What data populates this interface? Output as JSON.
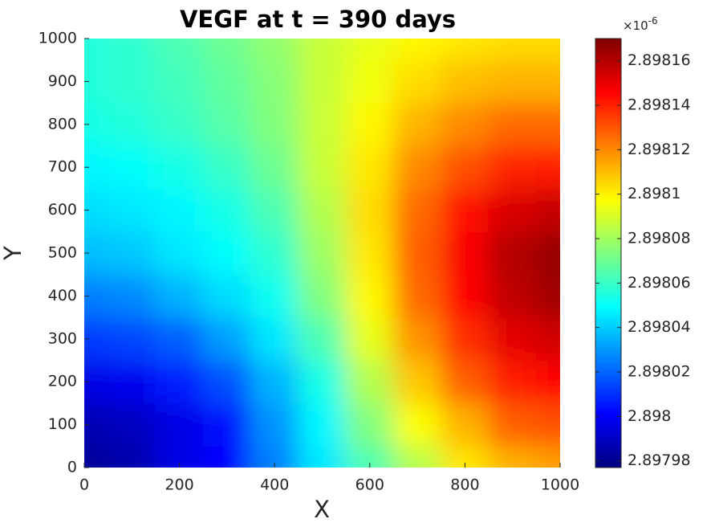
{
  "chart_data": {
    "type": "contourf",
    "title": "VEGF at t = 390 days",
    "xlabel": "X",
    "ylabel": "Y",
    "x": [
      0,
      100,
      200,
      300,
      400,
      500,
      600,
      700,
      800,
      900,
      1000
    ],
    "y": [
      0,
      100,
      200,
      300,
      400,
      500,
      600,
      700,
      800,
      900,
      1000
    ],
    "z": [
      [
        2.897981,
        2.897985,
        2.897996,
        2.898002,
        2.898025,
        2.898045,
        2.898064,
        2.898083,
        2.898102,
        2.898112,
        2.898116
      ],
      [
        2.897987,
        2.897989,
        2.897996,
        2.898004,
        2.898029,
        2.898048,
        2.898074,
        2.898097,
        2.898112,
        2.898128,
        2.898131
      ],
      [
        2.897996,
        2.897998,
        2.898006,
        2.898016,
        2.898035,
        2.898054,
        2.898083,
        2.898108,
        2.898128,
        2.898141,
        2.898145
      ],
      [
        2.898012,
        2.898014,
        2.898019,
        2.898031,
        2.898045,
        2.898064,
        2.898093,
        2.898118,
        2.898137,
        2.898151,
        2.898155
      ],
      [
        2.898025,
        2.898027,
        2.898035,
        2.898043,
        2.898052,
        2.898074,
        2.898099,
        2.898126,
        2.898145,
        2.898158,
        2.898164
      ],
      [
        2.898037,
        2.898039,
        2.898045,
        2.89805,
        2.898058,
        2.898079,
        2.898102,
        2.898128,
        2.898147,
        2.89816,
        2.898166
      ],
      [
        2.898043,
        2.898045,
        2.898048,
        2.898054,
        2.898064,
        2.898083,
        2.898104,
        2.898126,
        2.898143,
        2.898153,
        2.898157
      ],
      [
        2.898048,
        2.89805,
        2.898054,
        2.89806,
        2.89807,
        2.898087,
        2.898102,
        2.89812,
        2.898131,
        2.898139,
        2.898141
      ],
      [
        2.898054,
        2.898056,
        2.89806,
        2.898066,
        2.898074,
        2.898087,
        2.898099,
        2.898112,
        2.89812,
        2.898126,
        2.898126
      ],
      [
        2.898056,
        2.898058,
        2.898062,
        2.898068,
        2.898075,
        2.898087,
        2.898095,
        2.898104,
        2.89811,
        2.898112,
        2.898112
      ],
      [
        2.898056,
        2.898058,
        2.898064,
        2.89807,
        2.898077,
        2.898087,
        2.898093,
        2.898099,
        2.898102,
        2.898104,
        2.898104
      ]
    ],
    "xlim": [
      0,
      1000
    ],
    "ylim": [
      0,
      1000
    ],
    "xticks": [
      0,
      200,
      400,
      600,
      800,
      1000
    ],
    "yticks": [
      0,
      100,
      200,
      300,
      400,
      500,
      600,
      700,
      800,
      900,
      1000
    ],
    "colormap": "jet",
    "clim": [
      2.897977,
      2.89817
    ],
    "cticks": [
      2.89798,
      2.898,
      2.89802,
      2.89804,
      2.89806,
      2.89808,
      2.8981,
      2.89812,
      2.89814,
      2.89816
    ],
    "colorbar_multiplier": "×10",
    "colorbar_exponent": "-6"
  }
}
